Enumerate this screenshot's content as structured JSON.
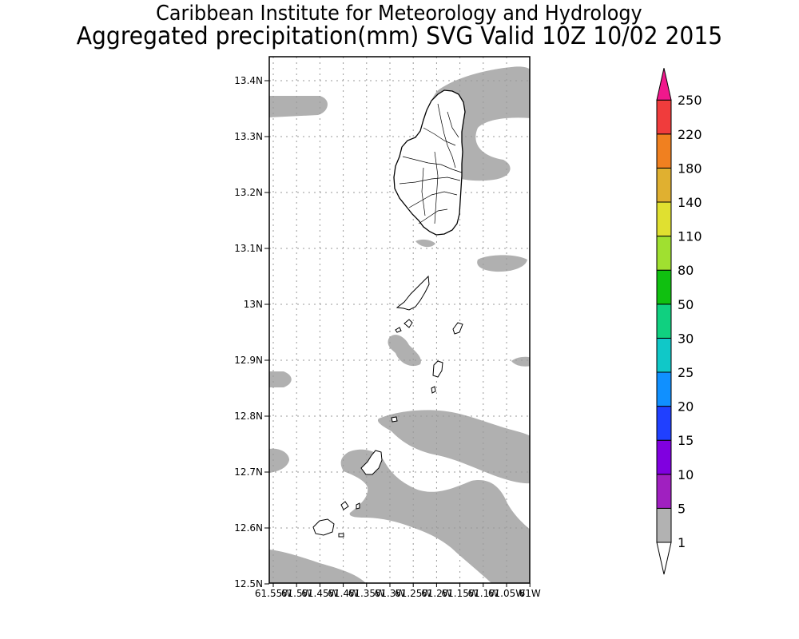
{
  "header": {
    "institution": "Caribbean Institute for Meteorology and Hydrology",
    "product": "Aggregated precipitation(mm) SVG Valid 10Z 10/02 2015"
  },
  "map": {
    "lat_ticks": [
      "13.4N",
      "13.3N",
      "13.2N",
      "13.1N",
      "13N",
      "12.9N",
      "12.8N",
      "12.7N",
      "12.6N",
      "12.5N"
    ],
    "lon_ticks": [
      "61.55W",
      "61.5W",
      "61.45W",
      "61.4W",
      "61.35W",
      "61.3W",
      "61.25W",
      "61.2W",
      "61.15W",
      "61.1W",
      "61.05W",
      "61W"
    ],
    "grid": "dotted",
    "lat_range": [
      12.5,
      13.44
    ],
    "lon_range": [
      -61.55,
      -61.0
    ],
    "islands": [
      "Saint Vincent",
      "Grenadines"
    ]
  },
  "colorbar": {
    "labels": [
      "1",
      "5",
      "10",
      "15",
      "20",
      "25",
      "30",
      "50",
      "80",
      "110",
      "140",
      "180",
      "220",
      "250"
    ],
    "colors": [
      "#ffffff",
      "#b2b2b2",
      "#a020c0",
      "#8000e0",
      "#2040ff",
      "#1090ff",
      "#10c8c8",
      "#10d080",
      "#10c010",
      "#a0e030",
      "#e0e030",
      "#e0b030",
      "#f08020",
      "#f03c3c",
      "#f0188c"
    ]
  }
}
